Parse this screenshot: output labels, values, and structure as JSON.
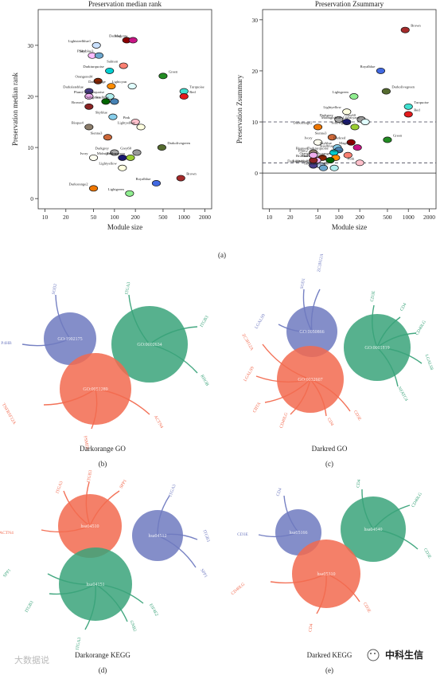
{
  "figure": {
    "panel_a_label": "(a)",
    "panel_b_label": "(b)",
    "panel_c_label": "(c)",
    "panel_d_label": "(d)",
    "panel_e_label": "(e)",
    "watermark_left": "大数据说",
    "watermark_right": "中科生信"
  },
  "chart_data": [
    {
      "type": "scatter",
      "title": "Preservation median rank",
      "xlabel": "Module size",
      "ylabel": "Preservation median rank",
      "xscale": "log",
      "xlim": [
        8,
        2500
      ],
      "ylim": [
        -2,
        37
      ],
      "xticks": [
        10,
        20,
        50,
        100,
        200,
        500,
        1000,
        2000
      ],
      "yticks": [
        0,
        10,
        20,
        30
      ],
      "grid": false,
      "points": [
        {
          "name": "Darkred",
          "x": 150,
          "y": 31,
          "color": "#8b0000"
        },
        {
          "name": "Magenta",
          "x": 185,
          "y": 31,
          "color": "#c71585"
        },
        {
          "name": "Lightsteelblue1",
          "x": 55,
          "y": 30,
          "color": "#cae1ff"
        },
        {
          "name": "Plum1",
          "x": 48,
          "y": 28,
          "color": "#ffbbff"
        },
        {
          "name": "Skyblue3",
          "x": 60,
          "y": 28,
          "color": "#6ca6cd"
        },
        {
          "name": "Salmon",
          "x": 135,
          "y": 26,
          "color": "#fa8072"
        },
        {
          "name": "Darkturquoise",
          "x": 85,
          "y": 25,
          "color": "#00ced1"
        },
        {
          "name": "Green",
          "x": 500,
          "y": 24,
          "color": "#228b22"
        },
        {
          "name": "Orangered4",
          "x": 58,
          "y": 23,
          "color": "#8b2500"
        },
        {
          "name": "Darkorange",
          "x": 90,
          "y": 22,
          "color": "#ff8c00"
        },
        {
          "name": "Lightcyan",
          "x": 180,
          "y": 22,
          "color": "#e0ffff"
        },
        {
          "name": "Turquoise",
          "x": 1000,
          "y": 21,
          "color": "#40e0d0"
        },
        {
          "name": "Red",
          "x": 1000,
          "y": 20,
          "color": "#e31a1c"
        },
        {
          "name": "Darkslateblue",
          "x": 43,
          "y": 21,
          "color": "#483d8b"
        },
        {
          "name": "Paleturquoise",
          "x": 86,
          "y": 20,
          "color": "#afeeee"
        },
        {
          "name": "Plum2",
          "x": 43,
          "y": 20,
          "color": "#eeaeee"
        },
        {
          "name": "Darkgreen",
          "x": 75,
          "y": 19,
          "color": "#006400"
        },
        {
          "name": "Steelblue",
          "x": 100,
          "y": 19,
          "color": "#4682b4"
        },
        {
          "name": "Brown4",
          "x": 43,
          "y": 18,
          "color": "#8b2323"
        },
        {
          "name": "Skyblue",
          "x": 95,
          "y": 16,
          "color": "#87ceeb"
        },
        {
          "name": "Pink",
          "x": 200,
          "y": 15,
          "color": "#ffc0cb"
        },
        {
          "name": "Lightyellow",
          "x": 240,
          "y": 14,
          "color": "#ffffe0"
        },
        {
          "name": "Bisque4",
          "x": 43,
          "y": 14,
          "color": "#8b7d6b"
        },
        {
          "name": "Sienna3",
          "x": 80,
          "y": 12,
          "color": "#cd6839"
        },
        {
          "name": "Darkolivegreen",
          "x": 480,
          "y": 10,
          "color": "#556b2f"
        },
        {
          "name": "Darkgrey",
          "x": 100,
          "y": 9,
          "color": "#a9a9a9"
        },
        {
          "name": "Grey60",
          "x": 210,
          "y": 9,
          "color": "#999999"
        },
        {
          "name": "Ivory",
          "x": 50,
          "y": 8,
          "color": "#fffff0"
        },
        {
          "name": "Midnightblue",
          "x": 130,
          "y": 8,
          "color": "#191970"
        },
        {
          "name": "Yellowgreen",
          "x": 170,
          "y": 8,
          "color": "#9acd32"
        },
        {
          "name": "Lightyellow",
          "x": 130,
          "y": 6,
          "color": "#ffffe0"
        },
        {
          "name": "Brown",
          "x": 900,
          "y": 4,
          "color": "#a52a2a"
        },
        {
          "name": "Royalblue",
          "x": 400,
          "y": 3,
          "color": "#4169e1"
        },
        {
          "name": "Darkorange2",
          "x": 50,
          "y": 2,
          "color": "#ee7600"
        },
        {
          "name": "Lightgreen",
          "x": 165,
          "y": 1,
          "color": "#90ee90"
        }
      ]
    },
    {
      "type": "scatter",
      "title": "Preservation Zsummary",
      "xlabel": "Module size",
      "ylabel": "Preservation Zsummary",
      "xscale": "log",
      "xlim": [
        8,
        2500
      ],
      "ylim": [
        -7,
        32
      ],
      "xticks": [
        10,
        20,
        50,
        100,
        200,
        500,
        1000,
        2000
      ],
      "yticks": [
        0,
        10,
        20,
        30
      ],
      "hlines": [
        {
          "y": 10,
          "style": "dashed"
        },
        {
          "y": 2,
          "style": "dashed"
        },
        {
          "y": 0,
          "style": "solid"
        }
      ],
      "grid": false,
      "points": [
        {
          "name": "Brown",
          "x": 900,
          "y": 28,
          "color": "#a52a2a"
        },
        {
          "name": "Royalblue",
          "x": 400,
          "y": 20,
          "color": "#4169e1"
        },
        {
          "name": "Darkolivegreen",
          "x": 480,
          "y": 16,
          "color": "#556b2f"
        },
        {
          "name": "Lightgreen",
          "x": 165,
          "y": 15,
          "color": "#90ee90"
        },
        {
          "name": "Turquoise",
          "x": 1000,
          "y": 13,
          "color": "#40e0d0"
        },
        {
          "name": "Red",
          "x": 1000,
          "y": 11.5,
          "color": "#e31a1c"
        },
        {
          "name": "Lightyellow",
          "x": 130,
          "y": 12,
          "color": "#ffffe0"
        },
        {
          "name": "Darkgrey",
          "x": 100,
          "y": 10.5,
          "color": "#a9a9a9"
        },
        {
          "name": "Grey60",
          "x": 210,
          "y": 10.5,
          "color": "#999999"
        },
        {
          "name": "Midnightblue",
          "x": 130,
          "y": 10,
          "color": "#191970"
        },
        {
          "name": "Lightcyan1",
          "x": 240,
          "y": 10,
          "color": "#e0ffff"
        },
        {
          "name": "Darkorange2",
          "x": 50,
          "y": 9,
          "color": "#ee7600"
        },
        {
          "name": "Yellowgreen",
          "x": 170,
          "y": 9,
          "color": "#9acd32"
        },
        {
          "name": "Sienna3",
          "x": 80,
          "y": 7,
          "color": "#cd6839"
        },
        {
          "name": "Green",
          "x": 500,
          "y": 6.5,
          "color": "#228b22"
        },
        {
          "name": "Ivory",
          "x": 50,
          "y": 6,
          "color": "#fffff0"
        },
        {
          "name": "Darkred",
          "x": 150,
          "y": 6,
          "color": "#8b0000"
        },
        {
          "name": "Magenta",
          "x": 185,
          "y": 5,
          "color": "#c71585"
        },
        {
          "name": "Skyblue",
          "x": 95,
          "y": 5,
          "color": "#87ceeb"
        },
        {
          "name": "Steelblue",
          "x": 100,
          "y": 4.5,
          "color": "#4682b4"
        },
        {
          "name": "Bisque4",
          "x": 43,
          "y": 4,
          "color": "#8b7d6b"
        },
        {
          "name": "Darkturquoise",
          "x": 85,
          "y": 4,
          "color": "#00ced1"
        },
        {
          "name": "Salmon",
          "x": 135,
          "y": 3.5,
          "color": "#fa8072"
        },
        {
          "name": "Orangered4",
          "x": 58,
          "y": 3,
          "color": "#8b2500"
        },
        {
          "name": "Darkorange",
          "x": 90,
          "y": 3,
          "color": "#ff8c00"
        },
        {
          "name": "Plum1",
          "x": 48,
          "y": 2.5,
          "color": "#ffbbff"
        },
        {
          "name": "Darkgreen",
          "x": 75,
          "y": 2.5,
          "color": "#006400"
        },
        {
          "name": "Lightsteelblue1",
          "x": 55,
          "y": 1.5,
          "color": "#cae1ff"
        },
        {
          "name": "Darkslateblue",
          "x": 43,
          "y": 1.5,
          "color": "#483d8b"
        },
        {
          "name": "Skyblue3",
          "x": 60,
          "y": 1,
          "color": "#6ca6cd"
        },
        {
          "name": "Paleturquoise",
          "x": 86,
          "y": 1,
          "color": "#afeeee"
        },
        {
          "name": "Pink",
          "x": 200,
          "y": 2,
          "color": "#ffc0cb"
        },
        {
          "name": "Brown4",
          "x": 43,
          "y": 2.5,
          "color": "#8b2323"
        },
        {
          "name": "Plum2",
          "x": 43,
          "y": 3.5,
          "color": "#eeaeee"
        }
      ]
    }
  ],
  "networks": [
    {
      "caption": "Darkorange GO",
      "circles": [
        {
          "id": "GO:1902175",
          "color": "#6f7ac0",
          "cx": 88,
          "cy": 425,
          "r": 33,
          "genes": [
            {
              "label": "SOD2",
              "ex": 70,
              "ey": 370,
              "tx": 70,
              "ty": 363,
              "rot": -80
            },
            {
              "label": "P4HB",
              "ex": 28,
              "ey": 432,
              "tx": 8,
              "ty": 432,
              "rot": 0
            }
          ]
        },
        {
          "id": "GO:0002634",
          "color": "#3aa37a",
          "cx": 188,
          "cy": 432,
          "r": 48,
          "genes": [
            {
              "label": "ITGA3",
              "ex": 162,
              "ey": 370,
              "tx": 162,
              "ty": 362,
              "rot": -80
            },
            {
              "label": "ITGB3",
              "ex": 248,
              "ey": 410,
              "tx": 258,
              "ty": 404,
              "rot": -60
            },
            {
              "label": "RHOB",
              "ex": 248,
              "ey": 468,
              "tx": 256,
              "ty": 478,
              "rot": 60
            }
          ]
        },
        {
          "id": "GO:0051289",
          "color": "#f26a4f",
          "cx": 120,
          "cy": 488,
          "r": 45,
          "genes": [
            {
              "label": "TNFRSF12A",
              "ex": 55,
              "ey": 508,
              "tx": 10,
              "ty": 520,
              "rot": 60
            },
            {
              "label": "PSMD5",
              "ex": 115,
              "ey": 538,
              "tx": 107,
              "ty": 556,
              "rot": 80
            },
            {
              "label": "ACTN4",
              "ex": 188,
              "ey": 520,
              "tx": 198,
              "ty": 530,
              "rot": 60
            }
          ]
        }
      ]
    },
    {
      "caption": "Darkred GO",
      "circles": [
        {
          "id": "GO:0050866",
          "color": "#6f7ac0",
          "cx": 392,
          "cy": 416,
          "r": 32,
          "genes": [
            {
              "label": "SOD1",
              "ex": 382,
              "ey": 363,
              "tx": 382,
              "ty": 356,
              "rot": -80
            },
            {
              "label": "ZC3H12A",
              "ex": 402,
              "ey": 363,
              "tx": 404,
              "ty": 330,
              "rot": -80
            },
            {
              "label": "LGALS9",
              "ex": 350,
              "ey": 407,
              "tx": 328,
              "ty": 404,
              "rot": -60
            }
          ]
        },
        {
          "id": "GO:0001819",
          "color": "#3aa37a",
          "cx": 474,
          "cy": 436,
          "r": 42,
          "genes": [
            {
              "label": "CD3E",
              "ex": 470,
              "ey": 383,
              "tx": 470,
              "ty": 372,
              "rot": -80
            },
            {
              "label": "CD4",
              "ex": 503,
              "ey": 398,
              "tx": 508,
              "ty": 386,
              "rot": -60
            },
            {
              "label": "CD40LG",
              "ex": 523,
              "ey": 418,
              "tx": 530,
              "ty": 412,
              "rot": -60
            },
            {
              "label": "LGALS8",
              "ex": 530,
              "ey": 456,
              "tx": 538,
              "ty": 455,
              "rot": 70
            },
            {
              "label": "NFATC4",
              "ex": 500,
              "ey": 485,
              "tx": 505,
              "ty": 495,
              "rot": 60
            }
          ]
        },
        {
          "id": "GO:0032607",
          "color": "#f26a4f",
          "cx": 390,
          "cy": 476,
          "r": 42,
          "genes": [
            {
              "label": "ZC3H12A",
              "ex": 330,
              "ey": 432,
              "tx": 310,
              "ty": 430,
              "rot": 60
            },
            {
              "label": "LGALS9",
              "ex": 322,
              "ey": 472,
              "tx": 314,
              "ty": 470,
              "rot": -60
            },
            {
              "label": "CIITA",
              "ex": 333,
              "ey": 505,
              "tx": 324,
              "ty": 512,
              "rot": -60
            },
            {
              "label": "CD40LG",
              "ex": 365,
              "ey": 520,
              "tx": 358,
              "ty": 528,
              "rot": -70
            },
            {
              "label": "CD4",
              "ex": 410,
              "ey": 522,
              "tx": 414,
              "ty": 530,
              "rot": 60
            },
            {
              "label": "CD3E",
              "ex": 440,
              "ey": 516,
              "tx": 448,
              "ty": 522,
              "rot": 60
            }
          ]
        }
      ]
    },
    {
      "caption": "Darkorange KEGG",
      "circles": [
        {
          "id": "hsa04510",
          "color": "#f26a4f",
          "cx": 113,
          "cy": 660,
          "r": 40,
          "genes": [
            {
              "label": "ITGB3",
              "ex": 112,
              "ey": 605,
              "tx": 114,
              "ty": 598,
              "rot": -80
            },
            {
              "label": "ITGA3",
              "ex": 80,
              "ey": 616,
              "tx": 76,
              "ty": 612,
              "rot": -70
            },
            {
              "label": "SPP1",
              "ex": 150,
              "ey": 616,
              "tx": 156,
              "ty": 608,
              "rot": -60
            },
            {
              "label": "ACTN4",
              "ex": 52,
              "ey": 665,
              "tx": 8,
              "ty": 670,
              "rot": 0
            }
          ]
        },
        {
          "id": "hsa04512",
          "color": "#6f7ac0",
          "cx": 198,
          "cy": 672,
          "r": 32,
          "genes": [
            {
              "label": "ITGA3",
              "ex": 213,
              "ey": 622,
              "tx": 218,
              "ty": 616,
              "rot": -70
            },
            {
              "label": "ITGB3",
              "ex": 248,
              "ey": 677,
              "tx": 258,
              "ty": 673,
              "rot": 70
            },
            {
              "label": "SPP1",
              "ex": 246,
              "ey": 712,
              "tx": 255,
              "ty": 720,
              "rot": 60
            }
          ]
        },
        {
          "id": "hsa04151",
          "color": "#3aa37a",
          "cx": 120,
          "cy": 733,
          "r": 46,
          "genes": [
            {
              "label": "SPP1",
              "ex": 60,
              "ey": 720,
              "tx": 10,
              "ty": 720,
              "rot": -50
            },
            {
              "label": "ITGB3",
              "ex": 62,
              "ey": 745,
              "tx": 38,
              "ty": 762,
              "rot": -60
            },
            {
              "label": "ITGA3",
              "ex": 107,
              "ey": 790,
              "tx": 100,
              "ty": 808,
              "rot": -80
            },
            {
              "label": "GNB2",
              "ex": 160,
              "ey": 780,
              "tx": 166,
              "ty": 786,
              "rot": 70
            },
            {
              "label": "EIF4E2",
              "ex": 180,
              "ey": 757,
              "tx": 192,
              "ty": 766,
              "rot": 60
            }
          ]
        }
      ]
    },
    {
      "caption": "Darkred KEGG",
      "circles": [
        {
          "id": "hsa05166",
          "color": "#6f7ac0",
          "cx": 375,
          "cy": 668,
          "r": 29,
          "genes": [
            {
              "label": "CD4",
              "ex": 357,
              "ey": 622,
              "tx": 352,
              "ty": 618,
              "rot": -70
            },
            {
              "label": "CD3E",
              "ex": 325,
              "ey": 671,
              "tx": 305,
              "ty": 672,
              "rot": 0
            }
          ]
        },
        {
          "id": "hsa04640",
          "color": "#3aa37a",
          "cx": 469,
          "cy": 664,
          "r": 41,
          "genes": [
            {
              "label": "CD4",
              "ex": 455,
              "ey": 614,
              "tx": 452,
              "ty": 607,
              "rot": -80
            },
            {
              "label": "CD40LG",
              "ex": 515,
              "ey": 634,
              "tx": 525,
              "ty": 628,
              "rot": -60
            },
            {
              "label": "CD3E",
              "ex": 525,
              "ey": 689,
              "tx": 536,
              "ty": 695,
              "rot": 60
            }
          ]
        },
        {
          "id": "hsa05310",
          "color": "#f26a4f",
          "cx": 410,
          "cy": 720,
          "r": 43,
          "genes": [
            {
              "label": "CD40LG",
              "ex": 340,
              "ey": 730,
              "tx": 300,
              "ty": 740,
              "rot": -40
            },
            {
              "label": "CD4",
              "ex": 398,
              "ey": 770,
              "tx": 392,
              "ty": 788,
              "rot": -80
            },
            {
              "label": "CD3E",
              "ex": 452,
              "ey": 755,
              "tx": 460,
              "ty": 763,
              "rot": 60
            }
          ]
        }
      ]
    }
  ]
}
